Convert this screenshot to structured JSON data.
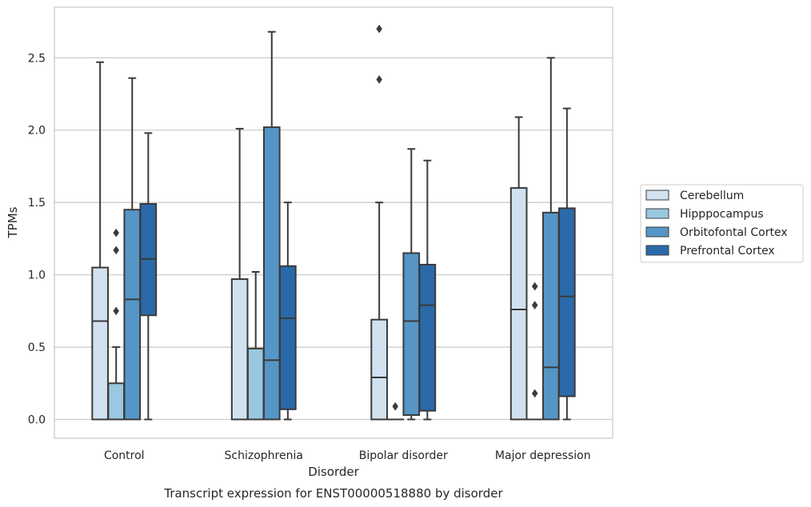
{
  "chart_data": {
    "type": "boxplot",
    "title": "",
    "caption": "Transcript expression for ENST00000518880 by disorder",
    "xlabel": "Disorder",
    "ylabel": "TPMs",
    "ylim": [
      -0.13,
      2.85
    ],
    "yticks": [
      0.0,
      0.5,
      1.0,
      1.5,
      2.0,
      2.5
    ],
    "ytick_labels": [
      "0.0",
      "0.5",
      "1.0",
      "1.5",
      "2.0",
      "2.5"
    ],
    "grid": "horizontal",
    "legend_position": "right",
    "categories": [
      "Control",
      "Schizophrenia",
      "Bipolar disorder",
      "Major depression"
    ],
    "series": [
      {
        "name": "Cerebellum",
        "color": "#d1e1ef",
        "boxes": [
          {
            "whislo": 0.0,
            "q1": 0.0,
            "med": 0.68,
            "q3": 1.05,
            "whishi": 2.47,
            "fliers": []
          },
          {
            "whislo": 0.0,
            "q1": 0.0,
            "med": 0.0,
            "q3": 0.97,
            "whishi": 2.01,
            "fliers": []
          },
          {
            "whislo": 0.0,
            "q1": 0.0,
            "med": 0.29,
            "q3": 0.69,
            "whishi": 1.5,
            "fliers": [
              2.35,
              2.7
            ]
          },
          {
            "whislo": 0.0,
            "q1": 0.0,
            "med": 0.76,
            "q3": 1.6,
            "whishi": 2.09,
            "fliers": []
          }
        ]
      },
      {
        "name": "Hipppocampus",
        "color": "#9ac8e0",
        "boxes": [
          {
            "whislo": 0.0,
            "q1": 0.0,
            "med": 0.0,
            "q3": 0.25,
            "whishi": 0.5,
            "fliers": [
              0.75,
              1.17,
              1.29
            ]
          },
          {
            "whislo": 0.0,
            "q1": 0.0,
            "med": 0.0,
            "q3": 0.49,
            "whishi": 1.02,
            "fliers": []
          },
          {
            "whislo": 0.0,
            "q1": 0.0,
            "med": 0.0,
            "q3": 0.0,
            "whishi": 0.0,
            "fliers": [
              0.09
            ]
          },
          {
            "whislo": 0.0,
            "q1": 0.0,
            "med": 0.0,
            "q3": 0.0,
            "whishi": 0.0,
            "fliers": [
              0.18,
              0.79,
              0.92
            ]
          }
        ]
      },
      {
        "name": "Orbitofontal Cortex",
        "color": "#5596c6",
        "boxes": [
          {
            "whislo": 0.0,
            "q1": 0.0,
            "med": 0.83,
            "q3": 1.45,
            "whishi": 2.36,
            "fliers": []
          },
          {
            "whislo": 0.0,
            "q1": 0.0,
            "med": 0.41,
            "q3": 2.02,
            "whishi": 2.68,
            "fliers": []
          },
          {
            "whislo": 0.0,
            "q1": 0.03,
            "med": 0.68,
            "q3": 1.15,
            "whishi": 1.87,
            "fliers": []
          },
          {
            "whislo": 0.0,
            "q1": 0.0,
            "med": 0.36,
            "q3": 1.43,
            "whishi": 2.5,
            "fliers": []
          }
        ]
      },
      {
        "name": "Prefrontal Cortex",
        "color": "#2a6aaa",
        "boxes": [
          {
            "whislo": 0.0,
            "q1": 0.72,
            "med": 1.11,
            "q3": 1.49,
            "whishi": 1.98,
            "fliers": []
          },
          {
            "whislo": 0.0,
            "q1": 0.07,
            "med": 0.7,
            "q3": 1.06,
            "whishi": 1.5,
            "fliers": []
          },
          {
            "whislo": 0.0,
            "q1": 0.06,
            "med": 0.79,
            "q3": 1.07,
            "whishi": 1.79,
            "fliers": []
          },
          {
            "whislo": 0.0,
            "q1": 0.16,
            "med": 0.85,
            "q3": 1.46,
            "whishi": 2.15,
            "fliers": []
          }
        ]
      }
    ]
  }
}
